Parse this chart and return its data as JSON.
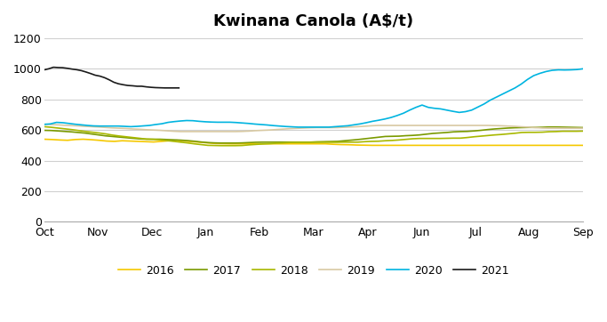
{
  "title": "Kwinana Canola (A$/t)",
  "ylim": [
    0,
    1200
  ],
  "yticks": [
    0,
    200,
    400,
    600,
    800,
    1000,
    1200
  ],
  "month_labels": [
    "Oct",
    "Nov",
    "Dec",
    "Jan",
    "Feb",
    "Mar",
    "Apr",
    "Jun",
    "Jul",
    "Aug",
    "Sep"
  ],
  "month_positions": [
    0,
    1,
    2,
    3,
    4,
    5,
    6,
    8,
    9,
    10,
    11
  ],
  "colors": {
    "2016": "#f5c800",
    "2017": "#7a9a00",
    "2018": "#a8b800",
    "2019": "#d8c9a3",
    "2020": "#00b4e0",
    "2021": "#1a1a1a"
  },
  "series_x": {
    "2016": [
      0.0,
      0.12,
      0.25,
      0.37,
      0.5,
      0.62,
      0.75,
      0.87,
      1.0,
      1.12,
      1.25,
      1.37,
      1.5,
      1.62,
      1.75,
      1.87,
      2.0,
      2.12,
      2.25,
      2.37,
      2.5,
      2.62,
      2.75,
      2.87,
      3.0,
      3.12,
      3.25,
      3.37,
      3.5,
      3.62,
      3.75,
      3.87,
      4.0,
      4.12,
      4.25,
      4.37,
      4.5,
      4.62,
      4.75,
      4.87,
      5.0,
      5.12,
      5.25,
      5.37,
      5.5,
      5.62,
      5.75,
      5.87,
      6.0,
      6.25,
      6.5,
      6.75,
      7.0,
      8.0,
      8.25,
      8.5,
      8.75,
      9.0,
      9.25,
      9.5,
      9.75,
      10.0,
      10.25,
      10.5,
      10.75,
      11.0,
      11.25,
      11.5,
      11.75,
      12.0
    ],
    "2021": [
      0.0,
      0.12,
      0.25,
      0.37,
      0.5,
      0.62,
      0.75,
      0.87,
      1.0,
      1.12,
      1.25,
      1.37,
      1.5,
      1.62,
      1.75,
      1.87,
      2.0,
      2.12,
      2.25,
      2.37,
      2.5,
      2.62,
      2.75,
      2.87,
      3.0,
      3.12,
      3.25,
      3.37,
      3.5,
      3.62
    ]
  },
  "series": {
    "2016": [
      540,
      538,
      535,
      533,
      538,
      540,
      537,
      533,
      528,
      526,
      530,
      528,
      526,
      524,
      522,
      526,
      530,
      533,
      528,
      524,
      520,
      516,
      512,
      511,
      510,
      510,
      510,
      510,
      510,
      510,
      510,
      510,
      510,
      510,
      510,
      510,
      510,
      507,
      505,
      504,
      502,
      501,
      500,
      500,
      500,
      500,
      500,
      500,
      500,
      500,
      500,
      500,
      500,
      500,
      500,
      500,
      500,
      500,
      500,
      500,
      500,
      500,
      500,
      500,
      500,
      500,
      500,
      500,
      500,
      500
    ],
    "2017": [
      598,
      597,
      594,
      591,
      588,
      584,
      580,
      574,
      568,
      562,
      558,
      554,
      550,
      546,
      542,
      540,
      540,
      540,
      538,
      536,
      534,
      531,
      527,
      522,
      518,
      516,
      515,
      515,
      515,
      516,
      518,
      520,
      521,
      521,
      521,
      521,
      521,
      521,
      521,
      521,
      523,
      524,
      525,
      526,
      530,
      534,
      538,
      543,
      548,
      553,
      558,
      559,
      560,
      563,
      565,
      568,
      573,
      578,
      581,
      584,
      588,
      590,
      591,
      594,
      598,
      603,
      607,
      610,
      613,
      615,
      616,
      617,
      617,
      618,
      620,
      620,
      619,
      618,
      617,
      616
    ],
    "2018": [
      622,
      618,
      613,
      608,
      603,
      597,
      591,
      586,
      581,
      575,
      567,
      561,
      556,
      551,
      546,
      541,
      539,
      536,
      531,
      526,
      521,
      516,
      510,
      505,
      500,
      499,
      498,
      498,
      498,
      499,
      503,
      506,
      509,
      511,
      514,
      516,
      519,
      520,
      520,
      520,
      520,
      520,
      520,
      520,
      521,
      521,
      521,
      524,
      526,
      527,
      530,
      532,
      535,
      539,
      543,
      545,
      545,
      545,
      545,
      546,
      547,
      547,
      551,
      556,
      560,
      564,
      568,
      571,
      575,
      579,
      584,
      585,
      585,
      586,
      589,
      590,
      592,
      592,
      592,
      593
    ],
    "2019": [
      638,
      636,
      634,
      631,
      629,
      627,
      624,
      622,
      620,
      617,
      614,
      612,
      610,
      607,
      605,
      602,
      600,
      598,
      595,
      592,
      590,
      590,
      590,
      590,
      590,
      590,
      590,
      590,
      590,
      591,
      593,
      596,
      598,
      600,
      603,
      606,
      609,
      611,
      613,
      615,
      616,
      616,
      616,
      616,
      618,
      620,
      622,
      625,
      628,
      630,
      630,
      630,
      630,
      630,
      630,
      630,
      630,
      630,
      630,
      630,
      630,
      630,
      630,
      630,
      630,
      630,
      629,
      628,
      626,
      624,
      621,
      619,
      616,
      613,
      612,
      612,
      612,
      612,
      612,
      612
    ],
    "2020": [
      637,
      640,
      650,
      648,
      643,
      638,
      634,
      630,
      627,
      626,
      626,
      626,
      626,
      624,
      622,
      624,
      627,
      630,
      636,
      641,
      650,
      655,
      659,
      662,
      661,
      657,
      654,
      652,
      651,
      651,
      651,
      649,
      646,
      643,
      639,
      636,
      633,
      629,
      626,
      623,
      621,
      619,
      619,
      619,
      619,
      619,
      619,
      622,
      625,
      628,
      634,
      640,
      648,
      657,
      664,
      672,
      682,
      695,
      710,
      730,
      748,
      763,
      748,
      742,
      738,
      730,
      722,
      715,
      720,
      730,
      750,
      770,
      795,
      815,
      835,
      855,
      875,
      900,
      930,
      955,
      970,
      982,
      990,
      993,
      992,
      993,
      995,
      1000
    ],
    "2021": [
      993,
      1000,
      1010,
      1008,
      1007,
      1003,
      998,
      994,
      988,
      979,
      969,
      958,
      952,
      942,
      928,
      912,
      902,
      896,
      891,
      889,
      886,
      886,
      882,
      879,
      877,
      876,
      875,
      875,
      875,
      875
    ]
  },
  "background_color": "#ffffff",
  "grid_color": "#d0d0d0",
  "spine_color": "#aaaaaa"
}
